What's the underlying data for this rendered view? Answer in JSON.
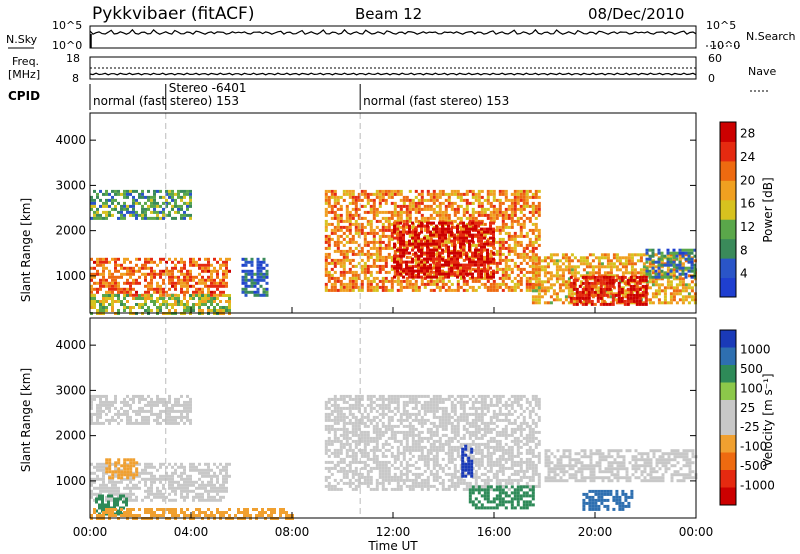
{
  "header": {
    "station": "Pykkvibaer (fitACF)",
    "beam": "Beam 12",
    "date": "08/Dec/2010"
  },
  "left_labels": {
    "nsky": "N.Sky",
    "freq": "Freq.",
    "freq_unit": "[MHz]",
    "cpid": "CPID"
  },
  "right_labels": {
    "nsearch": "N.Search",
    "nave": "Nave"
  },
  "noise_axis": {
    "top": "10^5",
    "bottom": "10^0",
    "top_right": "10^5",
    "bottom_right": "10^0"
  },
  "freq_axis": {
    "top": "18",
    "bottom": "8",
    "top_right": "60",
    "bottom_right": "0"
  },
  "cpid_segments": [
    {
      "label": "normal (fast stereo) 153",
      "start_hour": 0
    },
    {
      "label": "Stereo -6401",
      "start_hour": 3
    },
    {
      "label": "normal (fast stereo) 153",
      "start_hour": 10.7
    }
  ],
  "colors": {
    "power_scale": [
      "#1f3fd0",
      "#2a55c8",
      "#3a8a5a",
      "#5aa74a",
      "#d7c21f",
      "#f0a020",
      "#ee6a10",
      "#e52a10",
      "#cc0000"
    ],
    "velocity_scale": [
      "#1a3ab8",
      "#2e6fb0",
      "#2e8a58",
      "#8cc84a",
      "#c8c8c8",
      "#c8c8c8",
      "#f0a030",
      "#ee6a10",
      "#e52a10",
      "#cc0000"
    ],
    "background_scatter": "#c8c8c8"
  },
  "chart_data": [
    {
      "type": "heatmap",
      "panel": "power",
      "title": "",
      "xlabel": "",
      "ylabel": "Slant Range [km]",
      "x_ticks": [
        "00:00",
        "04:00",
        "08:00",
        "12:00",
        "16:00",
        "20:00",
        "00:00"
      ],
      "xlim": [
        0,
        24
      ],
      "y_ticks": [
        "1000",
        "2000",
        "3000",
        "4000"
      ],
      "ylim": [
        180,
        4600
      ],
      "colorbar": {
        "label": "Power [dB]",
        "ticks": [
          "4",
          "8",
          "12",
          "16",
          "20",
          "24",
          "28"
        ],
        "range": [
          0,
          30
        ]
      },
      "regions": [
        {
          "t0": 0.0,
          "t1": 5.5,
          "r0": 600,
          "r1": 1400,
          "value": 22
        },
        {
          "t0": 0.0,
          "t1": 5.5,
          "r0": 200,
          "r1": 600,
          "value": 14
        },
        {
          "t0": 0.0,
          "t1": 4.0,
          "r0": 2300,
          "r1": 2900,
          "value": 10
        },
        {
          "t0": 9.3,
          "t1": 17.8,
          "r0": 700,
          "r1": 2900,
          "value": 20
        },
        {
          "t0": 12.0,
          "t1": 16.0,
          "r0": 1000,
          "r1": 2200,
          "value": 28
        },
        {
          "t0": 17.5,
          "t1": 24.0,
          "r0": 400,
          "r1": 1500,
          "value": 18
        },
        {
          "t0": 19.0,
          "t1": 22.0,
          "r0": 400,
          "r1": 1000,
          "value": 28
        },
        {
          "t0": 22.0,
          "t1": 24.0,
          "r0": 1000,
          "r1": 1600,
          "value": 8
        },
        {
          "t0": 6.0,
          "t1": 7.0,
          "r0": 600,
          "r1": 1400,
          "value": 6
        }
      ]
    },
    {
      "type": "heatmap",
      "panel": "velocity",
      "title": "",
      "xlabel": "Time UT",
      "ylabel": "Slant Range [km]",
      "x_ticks": [
        "00:00",
        "04:00",
        "08:00",
        "12:00",
        "16:00",
        "20:00",
        "00:00"
      ],
      "xlim": [
        0,
        24
      ],
      "y_ticks": [
        "1000",
        "2000",
        "3000",
        "4000"
      ],
      "ylim": [
        180,
        4600
      ],
      "colorbar": {
        "label": "Velocity [m s⁻¹]",
        "ticks": [
          "1000",
          "500",
          "100",
          "25",
          "-25",
          "-100",
          "-500",
          "-1000"
        ]
      },
      "regions": [
        {
          "t0": 0.0,
          "t1": 5.5,
          "r0": 600,
          "r1": 1400,
          "value": 0
        },
        {
          "t0": 0.0,
          "t1": 4.0,
          "r0": 2300,
          "r1": 2900,
          "value": 0
        },
        {
          "t0": 9.3,
          "t1": 17.8,
          "r0": 800,
          "r1": 2900,
          "value": 0
        },
        {
          "t0": 18.0,
          "t1": 24.0,
          "r0": 1000,
          "r1": 1700,
          "value": 0
        },
        {
          "t0": 15.0,
          "t1": 17.5,
          "r0": 400,
          "r1": 900,
          "value": 150
        },
        {
          "t0": 19.5,
          "t1": 21.5,
          "r0": 400,
          "r1": 800,
          "value": 600
        },
        {
          "t0": 14.7,
          "t1": 15.1,
          "r0": 1100,
          "r1": 1800,
          "value": 900
        },
        {
          "t0": 0.2,
          "t1": 1.5,
          "r0": 300,
          "r1": 700,
          "value": 120
        },
        {
          "t0": 0.6,
          "t1": 1.8,
          "r0": 1100,
          "r1": 1500,
          "value": -200
        },
        {
          "t0": 0.0,
          "t1": 8.0,
          "r0": 200,
          "r1": 400,
          "value": -80
        }
      ]
    }
  ]
}
